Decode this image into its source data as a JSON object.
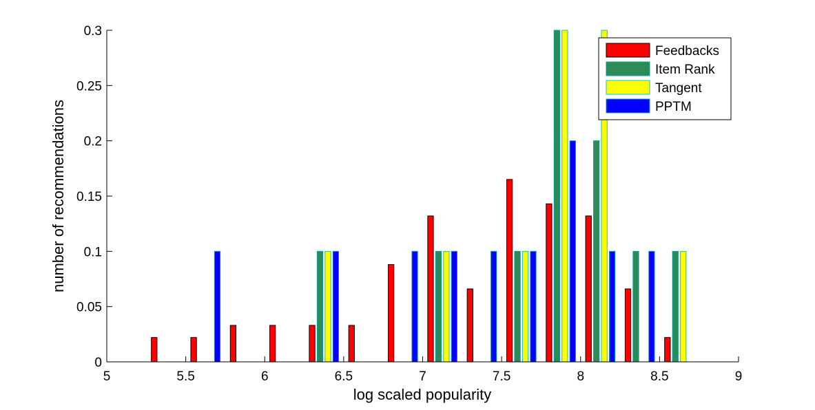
{
  "chart_data": {
    "type": "bar",
    "title": "",
    "xlabel": "log scaled popularity",
    "ylabel": "number of recommendations",
    "xlim": [
      5,
      9
    ],
    "ylim": [
      0,
      0.3
    ],
    "xticks": [
      "5",
      "5.5",
      "6",
      "6.5",
      "7",
      "7.5",
      "8",
      "8.5",
      "9"
    ],
    "yticks": [
      "0",
      "0.05",
      "0.1",
      "0.15",
      "0.2",
      "0.25",
      "0.3"
    ],
    "grid": false,
    "legend_position": "top-right",
    "bin_centers": [
      5.125,
      5.375,
      5.625,
      5.875,
      6.125,
      6.375,
      6.625,
      6.875,
      7.125,
      7.375,
      7.625,
      7.875,
      8.125,
      8.375,
      8.625,
      8.875
    ],
    "series": [
      {
        "name": "Feedbacks",
        "color": "#ff0000",
        "values": [
          0,
          0.022,
          0.022,
          0.033,
          0.033,
          0.033,
          0.033,
          0.088,
          0.132,
          0.066,
          0.165,
          0.143,
          0.132,
          0.066,
          0.022,
          0
        ]
      },
      {
        "name": "Item Rank",
        "color": "#2e8b57",
        "values": [
          0,
          0,
          0,
          0,
          0,
          0.1,
          0,
          0,
          0.1,
          0,
          0.1,
          0.3,
          0.2,
          0.1,
          0.1,
          0
        ]
      },
      {
        "name": "Tangent",
        "color": "#ffff00",
        "values": [
          0,
          0,
          0,
          0,
          0,
          0.1,
          0,
          0,
          0.1,
          0,
          0.1,
          0.3,
          0.3,
          0,
          0.1,
          0
        ]
      },
      {
        "name": "PPTM",
        "color": "#0000ff",
        "values": [
          0,
          0,
          0.1,
          0,
          0,
          0.1,
          0,
          0.1,
          0.1,
          0.1,
          0.1,
          0.2,
          0.1,
          0.1,
          0,
          0
        ]
      }
    ]
  }
}
